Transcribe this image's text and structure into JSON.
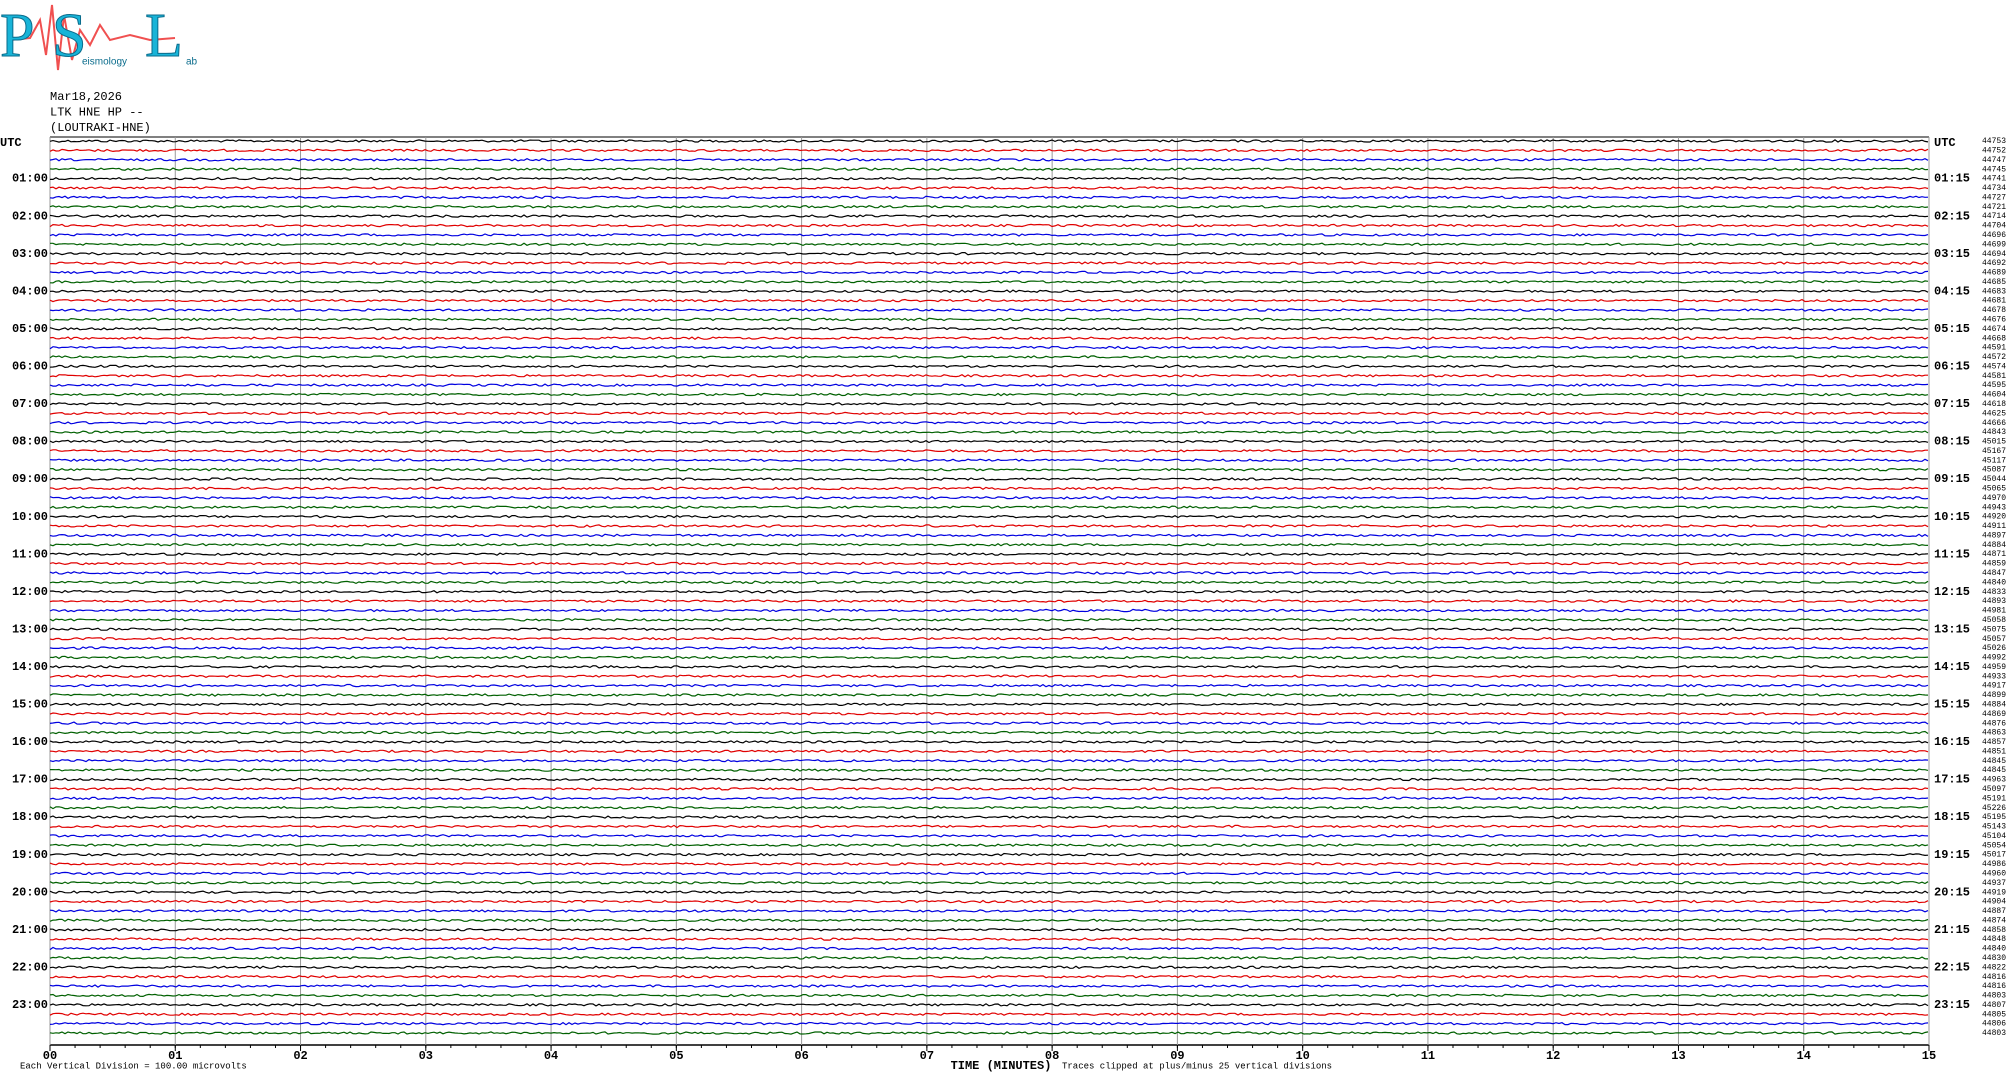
{
  "chart_data": {
    "type": "helicorder",
    "logo": {
      "letters": [
        "P",
        "S",
        "L"
      ],
      "words": [
        "eismology",
        "ab"
      ]
    },
    "header": [
      "Mar18,2026",
      "LTK HNE HP --",
      "(LOUTRAKI-HNE)"
    ],
    "left_labels": [
      "UTC",
      "01:00",
      "02:00",
      "03:00",
      "04:00",
      "05:00",
      "06:00",
      "07:00",
      "08:00",
      "09:00",
      "10:00",
      "11:00",
      "12:00",
      "13:00",
      "14:00",
      "15:00",
      "16:00",
      "17:00",
      "18:00",
      "19:00",
      "20:00",
      "21:00",
      "22:00",
      "23:00"
    ],
    "right_labels": [
      "UTC",
      "01:15",
      "02:15",
      "03:15",
      "04:15",
      "05:15",
      "06:15",
      "07:15",
      "08:15",
      "09:15",
      "10:15",
      "11:15",
      "12:15",
      "13:15",
      "14:15",
      "15:15",
      "16:15",
      "17:15",
      "18:15",
      "19:15",
      "20:15",
      "21:15",
      "22:15",
      "23:15"
    ],
    "trace_offsets": [
      44753,
      44752,
      44747,
      44745,
      44741,
      44734,
      44727,
      44721,
      44714,
      44704,
      44696,
      44699,
      44694,
      44692,
      44689,
      44685,
      44683,
      44681,
      44678,
      44676,
      44674,
      44668,
      44591,
      44572,
      44574,
      44581,
      44595,
      44604,
      44618,
      44625,
      44666,
      44843,
      45015,
      45167,
      45117,
      45087,
      45044,
      45065,
      44970,
      44943,
      44920,
      44911,
      44897,
      44884,
      44871,
      44859,
      44847,
      44840,
      44833,
      44893,
      44981,
      45058,
      45075,
      45057,
      45026,
      44992,
      44959,
      44933,
      44917,
      44899,
      44884,
      44869,
      44876,
      44863,
      44857,
      44851,
      44845,
      44845,
      44963,
      45097,
      45191,
      45226,
      45195,
      45143,
      45104,
      45054,
      45017,
      44986,
      44960,
      44937,
      44919,
      44904,
      44887,
      44874,
      44858,
      44848,
      44840,
      44830,
      44822,
      44816,
      44816,
      44803,
      44807,
      44805,
      44806,
      44803
    ],
    "trace_colors": [
      "#000000",
      "#e00000",
      "#0000e0",
      "#006000"
    ],
    "xlabel": "TIME (MINUTES)",
    "xlim": [
      0,
      15
    ],
    "xticks": [
      {
        "value": 0,
        "label": "00"
      },
      {
        "value": 1,
        "label": "01"
      },
      {
        "value": 2,
        "label": "02"
      },
      {
        "value": 3,
        "label": "03"
      },
      {
        "value": 4,
        "label": "04"
      },
      {
        "value": 5,
        "label": "05"
      },
      {
        "value": 6,
        "label": "06"
      },
      {
        "value": 7,
        "label": "07"
      },
      {
        "value": 8,
        "label": "08"
      },
      {
        "value": 9,
        "label": "09"
      },
      {
        "value": 10,
        "label": "10"
      },
      {
        "value": 11,
        "label": "11"
      },
      {
        "value": 12,
        "label": "12"
      },
      {
        "value": 13,
        "label": "13"
      },
      {
        "value": 14,
        "label": "14"
      },
      {
        "value": 15,
        "label": "15"
      }
    ],
    "footer_left": "Each Vertical Division =  100.00 microvolts",
    "footer_right": "Traces clipped at plus/minus 25 vertical divisions"
  }
}
